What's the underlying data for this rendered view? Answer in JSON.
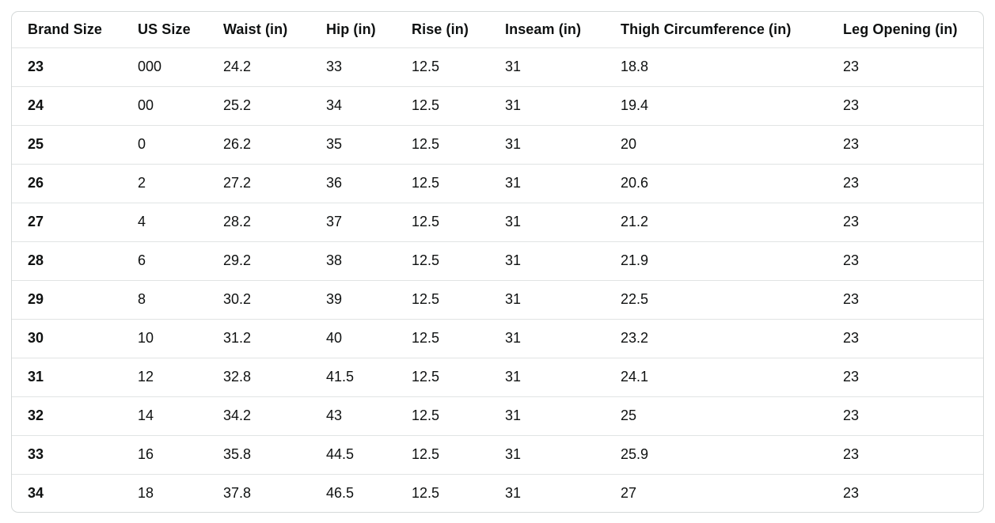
{
  "chart_data": {
    "type": "table",
    "columns": [
      "Brand Size",
      "US Size",
      "Waist (in)",
      "Hip (in)",
      "Rise (in)",
      "Inseam (in)",
      "Thigh Circumference (in)",
      "Leg Opening (in)"
    ],
    "rows": [
      [
        "23",
        "000",
        "24.2",
        "33",
        "12.5",
        "31",
        "18.8",
        "23"
      ],
      [
        "24",
        "00",
        "25.2",
        "34",
        "12.5",
        "31",
        "19.4",
        "23"
      ],
      [
        "25",
        "0",
        "26.2",
        "35",
        "12.5",
        "31",
        "20",
        "23"
      ],
      [
        "26",
        "2",
        "27.2",
        "36",
        "12.5",
        "31",
        "20.6",
        "23"
      ],
      [
        "27",
        "4",
        "28.2",
        "37",
        "12.5",
        "31",
        "21.2",
        "23"
      ],
      [
        "28",
        "6",
        "29.2",
        "38",
        "12.5",
        "31",
        "21.9",
        "23"
      ],
      [
        "29",
        "8",
        "30.2",
        "39",
        "12.5",
        "31",
        "22.5",
        "23"
      ],
      [
        "30",
        "10",
        "31.2",
        "40",
        "12.5",
        "31",
        "23.2",
        "23"
      ],
      [
        "31",
        "12",
        "32.8",
        "41.5",
        "12.5",
        "31",
        "24.1",
        "23"
      ],
      [
        "32",
        "14",
        "34.2",
        "43",
        "12.5",
        "31",
        "25",
        "23"
      ],
      [
        "33",
        "16",
        "35.8",
        "44.5",
        "12.5",
        "31",
        "25.9",
        "23"
      ],
      [
        "34",
        "18",
        "37.8",
        "46.5",
        "12.5",
        "31",
        "27",
        "23"
      ]
    ],
    "layout_hints": {
      "header_position": "top",
      "first_column_bold": true,
      "grid": "horizontal-row-dividers-only",
      "legend": "none"
    }
  },
  "colors": {
    "text": "#0f1111",
    "border_outer": "#d5d9d9",
    "row_divider": "#e1e4e4",
    "background": "#ffffff"
  }
}
